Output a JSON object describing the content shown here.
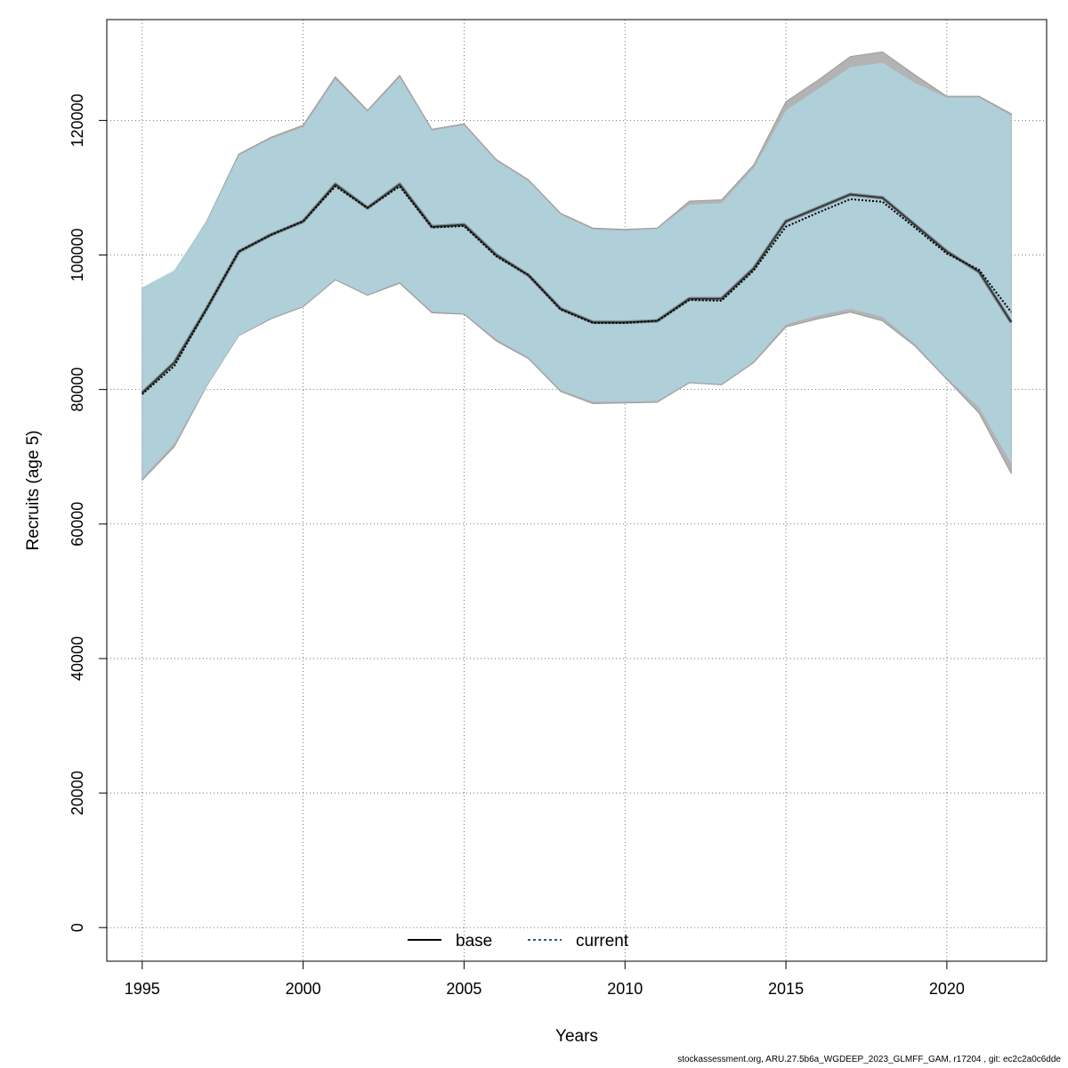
{
  "chart_data": {
    "type": "line",
    "title": "",
    "xlabel": "Years",
    "ylabel": "Recruits (age 5)",
    "xlim": [
      1993.9,
      2023.1
    ],
    "ylim": [
      -5000,
      135000
    ],
    "xticks": [
      1995,
      2000,
      2005,
      2010,
      2015,
      2020
    ],
    "yticks": [
      0,
      20000,
      40000,
      60000,
      80000,
      100000,
      120000
    ],
    "grid": true,
    "legend_position": "bottom-center",
    "x": [
      1995,
      1996,
      1997,
      1998,
      1999,
      2000,
      2001,
      2002,
      2003,
      2004,
      2005,
      2006,
      2007,
      2008,
      2009,
      2010,
      2011,
      2012,
      2013,
      2014,
      2015,
      2016,
      2017,
      2018,
      2019,
      2020,
      2021,
      2022
    ],
    "series": [
      {
        "name": "base",
        "style": "solid",
        "color": "#000000",
        "band_color": "#a6a6a6",
        "values": [
          79500,
          84000,
          92000,
          100500,
          103000,
          105000,
          110500,
          107000,
          110500,
          104200,
          104500,
          100000,
          97000,
          92000,
          90000,
          90000,
          90200,
          93500,
          93500,
          98000,
          105000,
          107000,
          109000,
          108500,
          104500,
          100500,
          97500,
          90000
        ],
        "lower": [
          66500,
          71500,
          80500,
          88000,
          90500,
          92300,
          96300,
          94000,
          95800,
          91400,
          91200,
          87200,
          84600,
          79700,
          77900,
          78000,
          78100,
          81000,
          80700,
          84000,
          89300,
          90500,
          91500,
          90200,
          86500,
          81500,
          76500,
          67500
        ],
        "upper": [
          95000,
          97500,
          105000,
          115000,
          117500,
          119300,
          126500,
          121500,
          126700,
          118700,
          119500,
          114200,
          111200,
          106200,
          104000,
          103800,
          104000,
          108000,
          108200,
          113400,
          122800,
          126000,
          129500,
          130200,
          126800,
          123600,
          123600,
          121000
        ]
      },
      {
        "name": "current",
        "style": "dotted",
        "color": "#1f5f8b",
        "band_color": "#add8e6",
        "values": [
          79300,
          83500,
          92000,
          100500,
          103000,
          105000,
          110200,
          107000,
          110200,
          104100,
          104300,
          99800,
          97000,
          91900,
          89900,
          89900,
          90200,
          93300,
          93200,
          97700,
          104200,
          106300,
          108300,
          107900,
          104100,
          100200,
          97800,
          91500
        ],
        "lower": [
          66800,
          72000,
          80500,
          88000,
          90600,
          92400,
          96400,
          94100,
          96000,
          91600,
          91300,
          87500,
          84800,
          79900,
          78200,
          78200,
          78300,
          81100,
          80800,
          84200,
          89700,
          91000,
          92000,
          90800,
          86800,
          81700,
          77300,
          69000
        ],
        "upper": [
          95200,
          97800,
          105000,
          114800,
          117300,
          119000,
          126100,
          121300,
          126400,
          118500,
          119300,
          114000,
          111000,
          106000,
          103800,
          103600,
          103900,
          107500,
          107700,
          112900,
          121500,
          124700,
          127900,
          128600,
          125600,
          123400,
          123400,
          120700
        ]
      }
    ]
  },
  "footer_text": "stockassessment.org, ARU.27.5b6a_WGDEEP_2023_GLMFF_GAM, r17204 , git: ec2c2a0c6dde"
}
